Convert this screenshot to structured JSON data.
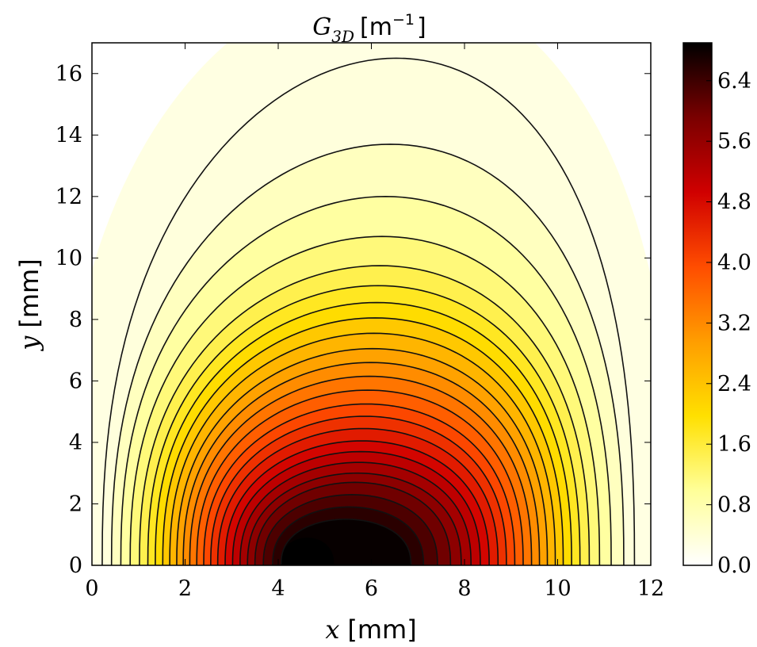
{
  "chart_data": {
    "type": "heatmap",
    "subtype": "filled-contour",
    "title": {
      "symbol": "G",
      "subscript": "3D",
      "unit_open": "[m",
      "unit_exponent": "−1",
      "unit_close": "]"
    },
    "xlabel": {
      "symbol": "x",
      "unit": "[mm]"
    },
    "ylabel": {
      "symbol": "y",
      "unit": "[mm]"
    },
    "xlim": [
      0,
      12
    ],
    "ylim": [
      0,
      17
    ],
    "x_ticks": [
      "0",
      "2",
      "4",
      "6",
      "8",
      "10",
      "12"
    ],
    "y_ticks": [
      "0",
      "2",
      "4",
      "6",
      "8",
      "10",
      "12",
      "14",
      "16"
    ],
    "colorbar": {
      "range": [
        0,
        6.9
      ],
      "ticks": [
        "0.0",
        "0.8",
        "1.6",
        "2.4",
        "3.2",
        "4.0",
        "4.8",
        "5.6",
        "6.4"
      ],
      "colormap": "hot_r",
      "colormap_stops": [
        "#ffffff",
        "#ffff99",
        "#ffe000",
        "#ff9d00",
        "#ff4d00",
        "#d00000",
        "#7a0000",
        "#000000"
      ]
    },
    "peak": {
      "x": 4.6,
      "y": 0.0,
      "value": 6.9
    },
    "contour_line_color": "#111111",
    "contour_levels_y_at_max": [
      16.5,
      13.7,
      12.0,
      10.7,
      9.75,
      9.1,
      8.55,
      8.05,
      7.55,
      7.05,
      6.6,
      6.15,
      5.7,
      5.25,
      4.85,
      4.45,
      4.05,
      3.7,
      3.35,
      3.0,
      2.7,
      2.3,
      1.9,
      1.5
    ],
    "contour_x_extents": [
      [
        0.22,
        11.65
      ],
      [
        0.42,
        11.42
      ],
      [
        0.62,
        11.15
      ],
      [
        0.82,
        10.9
      ],
      [
        1.02,
        10.68
      ],
      [
        1.2,
        10.48
      ],
      [
        1.36,
        10.3
      ],
      [
        1.52,
        10.12
      ],
      [
        1.67,
        9.95
      ],
      [
        1.82,
        9.78
      ],
      [
        1.96,
        9.61
      ],
      [
        2.1,
        9.44
      ],
      [
        2.25,
        9.26
      ],
      [
        2.4,
        9.08
      ],
      [
        2.55,
        8.9
      ],
      [
        2.7,
        8.72
      ],
      [
        2.86,
        8.53
      ],
      [
        3.02,
        8.34
      ],
      [
        3.18,
        8.14
      ],
      [
        3.34,
        7.93
      ],
      [
        3.5,
        7.7
      ],
      [
        3.68,
        7.42
      ],
      [
        3.88,
        7.12
      ],
      [
        4.06,
        6.85
      ]
    ]
  }
}
